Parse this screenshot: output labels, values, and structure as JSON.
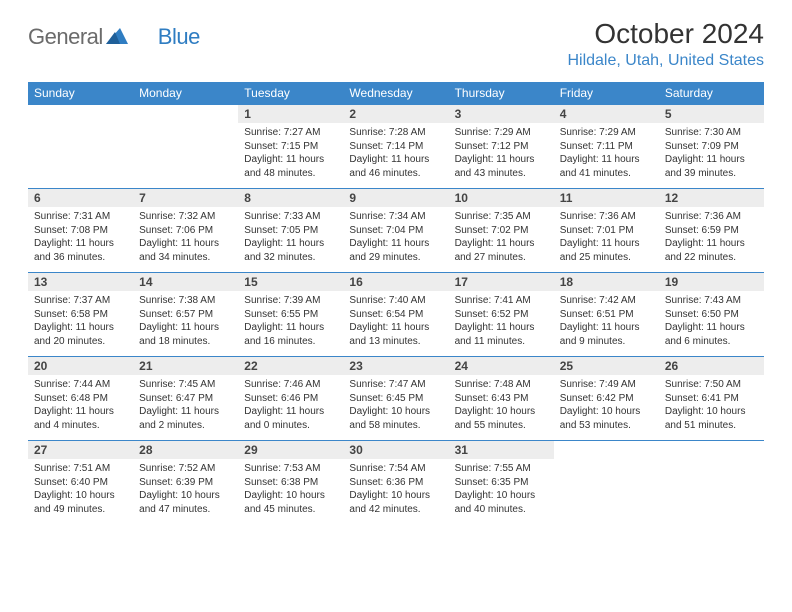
{
  "brand": {
    "name_a": "General",
    "name_b": "Blue"
  },
  "title": "October 2024",
  "subtitle": "Hildale, Utah, United States",
  "weekdays": [
    "Sunday",
    "Monday",
    "Tuesday",
    "Wednesday",
    "Thursday",
    "Friday",
    "Saturday"
  ],
  "colors": {
    "header_bg": "#3b86c9",
    "header_fg": "#ffffff",
    "daynum_bg": "#ededed",
    "row_border": "#3b86c9",
    "subtitle_fg": "#3b86c9",
    "logo_grey": "#6b6b6b",
    "logo_blue": "#2f7dc2"
  },
  "weeks": [
    [
      {
        "n": "",
        "sr": "",
        "ss": "",
        "dl": ""
      },
      {
        "n": "",
        "sr": "",
        "ss": "",
        "dl": ""
      },
      {
        "n": "1",
        "sr": "Sunrise: 7:27 AM",
        "ss": "Sunset: 7:15 PM",
        "dl": "Daylight: 11 hours and 48 minutes."
      },
      {
        "n": "2",
        "sr": "Sunrise: 7:28 AM",
        "ss": "Sunset: 7:14 PM",
        "dl": "Daylight: 11 hours and 46 minutes."
      },
      {
        "n": "3",
        "sr": "Sunrise: 7:29 AM",
        "ss": "Sunset: 7:12 PM",
        "dl": "Daylight: 11 hours and 43 minutes."
      },
      {
        "n": "4",
        "sr": "Sunrise: 7:29 AM",
        "ss": "Sunset: 7:11 PM",
        "dl": "Daylight: 11 hours and 41 minutes."
      },
      {
        "n": "5",
        "sr": "Sunrise: 7:30 AM",
        "ss": "Sunset: 7:09 PM",
        "dl": "Daylight: 11 hours and 39 minutes."
      }
    ],
    [
      {
        "n": "6",
        "sr": "Sunrise: 7:31 AM",
        "ss": "Sunset: 7:08 PM",
        "dl": "Daylight: 11 hours and 36 minutes."
      },
      {
        "n": "7",
        "sr": "Sunrise: 7:32 AM",
        "ss": "Sunset: 7:06 PM",
        "dl": "Daylight: 11 hours and 34 minutes."
      },
      {
        "n": "8",
        "sr": "Sunrise: 7:33 AM",
        "ss": "Sunset: 7:05 PM",
        "dl": "Daylight: 11 hours and 32 minutes."
      },
      {
        "n": "9",
        "sr": "Sunrise: 7:34 AM",
        "ss": "Sunset: 7:04 PM",
        "dl": "Daylight: 11 hours and 29 minutes."
      },
      {
        "n": "10",
        "sr": "Sunrise: 7:35 AM",
        "ss": "Sunset: 7:02 PM",
        "dl": "Daylight: 11 hours and 27 minutes."
      },
      {
        "n": "11",
        "sr": "Sunrise: 7:36 AM",
        "ss": "Sunset: 7:01 PM",
        "dl": "Daylight: 11 hours and 25 minutes."
      },
      {
        "n": "12",
        "sr": "Sunrise: 7:36 AM",
        "ss": "Sunset: 6:59 PM",
        "dl": "Daylight: 11 hours and 22 minutes."
      }
    ],
    [
      {
        "n": "13",
        "sr": "Sunrise: 7:37 AM",
        "ss": "Sunset: 6:58 PM",
        "dl": "Daylight: 11 hours and 20 minutes."
      },
      {
        "n": "14",
        "sr": "Sunrise: 7:38 AM",
        "ss": "Sunset: 6:57 PM",
        "dl": "Daylight: 11 hours and 18 minutes."
      },
      {
        "n": "15",
        "sr": "Sunrise: 7:39 AM",
        "ss": "Sunset: 6:55 PM",
        "dl": "Daylight: 11 hours and 16 minutes."
      },
      {
        "n": "16",
        "sr": "Sunrise: 7:40 AM",
        "ss": "Sunset: 6:54 PM",
        "dl": "Daylight: 11 hours and 13 minutes."
      },
      {
        "n": "17",
        "sr": "Sunrise: 7:41 AM",
        "ss": "Sunset: 6:52 PM",
        "dl": "Daylight: 11 hours and 11 minutes."
      },
      {
        "n": "18",
        "sr": "Sunrise: 7:42 AM",
        "ss": "Sunset: 6:51 PM",
        "dl": "Daylight: 11 hours and 9 minutes."
      },
      {
        "n": "19",
        "sr": "Sunrise: 7:43 AM",
        "ss": "Sunset: 6:50 PM",
        "dl": "Daylight: 11 hours and 6 minutes."
      }
    ],
    [
      {
        "n": "20",
        "sr": "Sunrise: 7:44 AM",
        "ss": "Sunset: 6:48 PM",
        "dl": "Daylight: 11 hours and 4 minutes."
      },
      {
        "n": "21",
        "sr": "Sunrise: 7:45 AM",
        "ss": "Sunset: 6:47 PM",
        "dl": "Daylight: 11 hours and 2 minutes."
      },
      {
        "n": "22",
        "sr": "Sunrise: 7:46 AM",
        "ss": "Sunset: 6:46 PM",
        "dl": "Daylight: 11 hours and 0 minutes."
      },
      {
        "n": "23",
        "sr": "Sunrise: 7:47 AM",
        "ss": "Sunset: 6:45 PM",
        "dl": "Daylight: 10 hours and 58 minutes."
      },
      {
        "n": "24",
        "sr": "Sunrise: 7:48 AM",
        "ss": "Sunset: 6:43 PM",
        "dl": "Daylight: 10 hours and 55 minutes."
      },
      {
        "n": "25",
        "sr": "Sunrise: 7:49 AM",
        "ss": "Sunset: 6:42 PM",
        "dl": "Daylight: 10 hours and 53 minutes."
      },
      {
        "n": "26",
        "sr": "Sunrise: 7:50 AM",
        "ss": "Sunset: 6:41 PM",
        "dl": "Daylight: 10 hours and 51 minutes."
      }
    ],
    [
      {
        "n": "27",
        "sr": "Sunrise: 7:51 AM",
        "ss": "Sunset: 6:40 PM",
        "dl": "Daylight: 10 hours and 49 minutes."
      },
      {
        "n": "28",
        "sr": "Sunrise: 7:52 AM",
        "ss": "Sunset: 6:39 PM",
        "dl": "Daylight: 10 hours and 47 minutes."
      },
      {
        "n": "29",
        "sr": "Sunrise: 7:53 AM",
        "ss": "Sunset: 6:38 PM",
        "dl": "Daylight: 10 hours and 45 minutes."
      },
      {
        "n": "30",
        "sr": "Sunrise: 7:54 AM",
        "ss": "Sunset: 6:36 PM",
        "dl": "Daylight: 10 hours and 42 minutes."
      },
      {
        "n": "31",
        "sr": "Sunrise: 7:55 AM",
        "ss": "Sunset: 6:35 PM",
        "dl": "Daylight: 10 hours and 40 minutes."
      },
      {
        "n": "",
        "sr": "",
        "ss": "",
        "dl": ""
      },
      {
        "n": "",
        "sr": "",
        "ss": "",
        "dl": ""
      }
    ]
  ]
}
